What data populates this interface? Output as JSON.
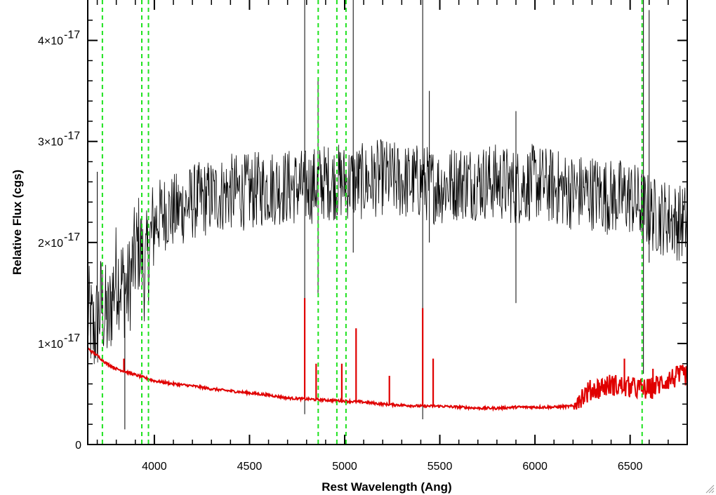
{
  "chart_data": {
    "type": "line",
    "title": "",
    "xlabel": "Rest Wavelength (Ang)",
    "ylabel": "Relative Flux (cgs)",
    "xlim": [
      3650,
      6800
    ],
    "ylim": [
      0,
      4.4e-17
    ],
    "x_ticks": [
      {
        "value": 4000,
        "label": "4000"
      },
      {
        "value": 4500,
        "label": "4500"
      },
      {
        "value": 5000,
        "label": "5000"
      },
      {
        "value": 5500,
        "label": "5500"
      },
      {
        "value": 6000,
        "label": "6000"
      },
      {
        "value": 6500,
        "label": "6500"
      }
    ],
    "y_ticks": [
      {
        "value": 0,
        "mantissa": "0",
        "exponent": ""
      },
      {
        "value": 1e-17,
        "mantissa": "1×10",
        "exponent": "-17"
      },
      {
        "value": 2e-17,
        "mantissa": "2×10",
        "exponent": "-17"
      },
      {
        "value": 3e-17,
        "mantissa": "3×10",
        "exponent": "-17"
      },
      {
        "value": 4e-17,
        "mantissa": "4×10",
        "exponent": "-17"
      }
    ],
    "grid": false,
    "legend": "none",
    "series": [
      {
        "color": "#000000",
        "style": "noisy-spectrum",
        "x": [
          3650,
          3680,
          3700,
          3720,
          3740,
          3760,
          3780,
          3800,
          3830,
          3860,
          3890,
          3920,
          3950,
          3970,
          4000,
          4050,
          4100,
          4150,
          4200,
          4300,
          4400,
          4500,
          4600,
          4700,
          4800,
          4900,
          5000,
          5100,
          5200,
          5300,
          5400,
          5500,
          5600,
          5700,
          5800,
          5900,
          6000,
          6100,
          6200,
          6300,
          6400,
          6500,
          6600,
          6650,
          6700,
          6750,
          6800
        ],
        "y": [
          1.3e-17,
          1.1e-17,
          1.2e-17,
          1.4e-17,
          1.3e-17,
          1.2e-17,
          1.5e-17,
          1.7e-17,
          1.6e-17,
          1.5e-17,
          1.8e-17,
          2e-17,
          1.7e-17,
          1.9e-17,
          2.2e-17,
          2.3e-17,
          2.3e-17,
          2.35e-17,
          2.4e-17,
          2.45e-17,
          2.5e-17,
          2.5e-17,
          2.55e-17,
          2.55e-17,
          2.55e-17,
          2.6e-17,
          2.6e-17,
          2.6e-17,
          2.65e-17,
          2.6e-17,
          2.6e-17,
          2.55e-17,
          2.6e-17,
          2.6e-17,
          2.6e-17,
          2.55e-17,
          2.6e-17,
          2.55e-17,
          2.5e-17,
          2.5e-17,
          2.45e-17,
          2.45e-17,
          2.3e-17,
          2.25e-17,
          2.25e-17,
          2.2e-17,
          2.2e-17
        ]
      },
      {
        "color": "#e00000",
        "style": "model-spectrum",
        "x": [
          3650,
          3700,
          3750,
          3800,
          3850,
          3900,
          3950,
          4000,
          4100,
          4200,
          4300,
          4400,
          4500,
          4600,
          4700,
          4800,
          4900,
          5000,
          5100,
          5200,
          5300,
          5400,
          5500,
          5600,
          5700,
          5800,
          5900,
          6000,
          6100,
          6200,
          6300,
          6400,
          6500,
          6600,
          6700,
          6800
        ],
        "y": [
          9.5e-18,
          8.8e-18,
          8e-18,
          7.5e-18,
          7.2e-18,
          6.9e-18,
          6.6e-18,
          6.3e-18,
          6e-18,
          5.8e-18,
          5.5e-18,
          5.3e-18,
          5.1e-18,
          4.9e-18,
          4.6e-18,
          4.5e-18,
          4.4e-18,
          4.3e-18,
          4.2e-18,
          4e-18,
          3.9e-18,
          3.8e-18,
          3.8e-18,
          3.7e-18,
          3.6e-18,
          3.6e-18,
          3.7e-18,
          3.7e-18,
          3.7e-18,
          3.8e-18,
          5e-18,
          5.5e-18,
          5.2e-18,
          5e-18,
          6e-18,
          6.5e-18
        ]
      }
    ],
    "emission_lines": [
      {
        "x": 3840,
        "peak": 8.5e-18
      },
      {
        "x": 4790,
        "peak": 1.45e-17
      },
      {
        "x": 4850,
        "peak": 8e-18
      },
      {
        "x": 4985,
        "peak": 8e-18
      },
      {
        "x": 5060,
        "peak": 1.15e-17
      },
      {
        "x": 5235,
        "peak": 6.8e-18
      },
      {
        "x": 5410,
        "peak": 1.35e-17
      },
      {
        "x": 5465,
        "peak": 8.5e-18
      },
      {
        "x": 6470,
        "peak": 8.5e-18
      },
      {
        "x": 6620,
        "peak": 7.5e-18
      }
    ],
    "spikes_black": [
      {
        "x": 3700,
        "top": 2.7e-17,
        "bottom": 9e-18
      },
      {
        "x": 3845,
        "top": 1.7e-17,
        "bottom": 1.5e-18
      },
      {
        "x": 4790,
        "top": 4.4e-17,
        "bottom": 3e-18
      },
      {
        "x": 4860,
        "top": 3.6e-17,
        "bottom": 1.5e-17
      },
      {
        "x": 5045,
        "top": 4.4e-17,
        "bottom": 1.9e-17
      },
      {
        "x": 5410,
        "top": 4.4e-17,
        "bottom": 2.5e-18
      },
      {
        "x": 5445,
        "top": 3.5e-17,
        "bottom": 2e-17
      },
      {
        "x": 5900,
        "top": 3.3e-17,
        "bottom": 1.4e-17
      },
      {
        "x": 6570,
        "top": 4.4e-17,
        "bottom": 7e-18
      },
      {
        "x": 6600,
        "top": 4.3e-17,
        "bottom": 1.8e-17
      }
    ],
    "reference_lines": [
      3727,
      3934,
      3969,
      4861,
      4959,
      5007,
      6563
    ]
  }
}
